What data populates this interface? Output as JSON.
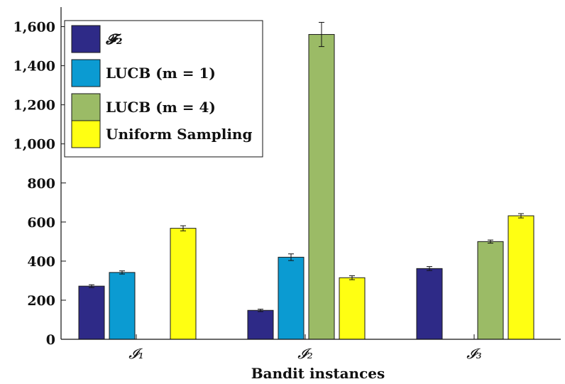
{
  "chart_data": {
    "type": "bar",
    "title": "",
    "xlabel": "Bandit instances",
    "ylabel": "",
    "ylim": [
      0,
      1700
    ],
    "yticks": [
      0,
      200,
      400,
      600,
      800,
      1000,
      1200,
      1400,
      1600
    ],
    "ytick_labels": [
      "0",
      "200",
      "400",
      "600",
      "800",
      "1,000",
      "1,200",
      "1,400",
      "1,600"
    ],
    "categories": [
      "𝓘₁",
      "𝓘₂",
      "𝓘₃"
    ],
    "legend_position": "top-left",
    "grid": false,
    "series": [
      {
        "name": "𝓕₂",
        "color": "#2e2a87",
        "values": [
          272,
          148,
          362
        ],
        "errors": [
          7,
          6,
          10
        ]
      },
      {
        "name": "LUCB (m = 1)",
        "color": "#0b9bd2",
        "values": [
          342,
          420,
          null
        ],
        "errors": [
          8,
          17,
          null
        ]
      },
      {
        "name": "LUCB (m = 4)",
        "color": "#9bbb66",
        "values": [
          null,
          1560,
          500
        ],
        "errors": [
          null,
          62,
          8
        ]
      },
      {
        "name": "Uniform Sampling",
        "color": "#ffff12",
        "values": [
          568,
          315,
          632
        ],
        "errors": [
          13,
          10,
          11
        ]
      }
    ]
  }
}
